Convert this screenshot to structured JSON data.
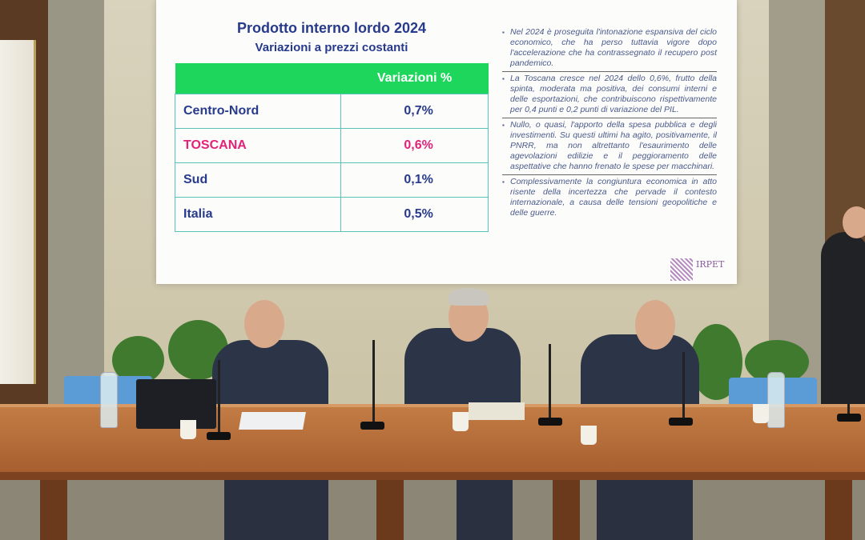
{
  "slide": {
    "title": "Prodotto interno lordo  2024",
    "subtitle": "Variazioni a prezzi costanti",
    "table": {
      "header": "Variazioni %",
      "rows": [
        {
          "region": "Centro-Nord",
          "value": "0,7%"
        },
        {
          "region": "TOSCANA",
          "value": "0,6%"
        },
        {
          "region": "Sud",
          "value": "0,1%"
        },
        {
          "region": "Italia",
          "value": "0,5%"
        }
      ]
    },
    "notes": [
      "Nel 2024 è proseguita l'intonazione espansiva del ciclo economico, che ha perso tuttavia vigore dopo l'accelerazione che ha contrassegnato il recupero post pandemico.",
      "La Toscana cresce nel 2024 dello 0,6%, frutto della spinta, moderata ma positiva, dei consumi interni e delle esportazioni, che contribuiscono rispettivamente per 0,4 punti e 0,2 punti di variazione del PIL.",
      "Nullo, o quasi, l'apporto della spesa pubblica e degli investimenti. Su questi ultimi ha agito, positivamente, il PNRR, ma non altrettanto l'esaurimento delle agevolazioni edilizie e il peggioramento delle aspettative che hanno frenato le spese per macchinari.",
      "Complessivamente la congiuntura economica in atto risente della incertezza che pervade il contesto internazionale, a causa delle tensioni geopolitiche e delle guerre."
    ],
    "logo": "IRPET",
    "colors": {
      "header_green": "#1fd65c",
      "title_blue": "#273a8c",
      "highlight_pink": "#e2227a"
    }
  }
}
